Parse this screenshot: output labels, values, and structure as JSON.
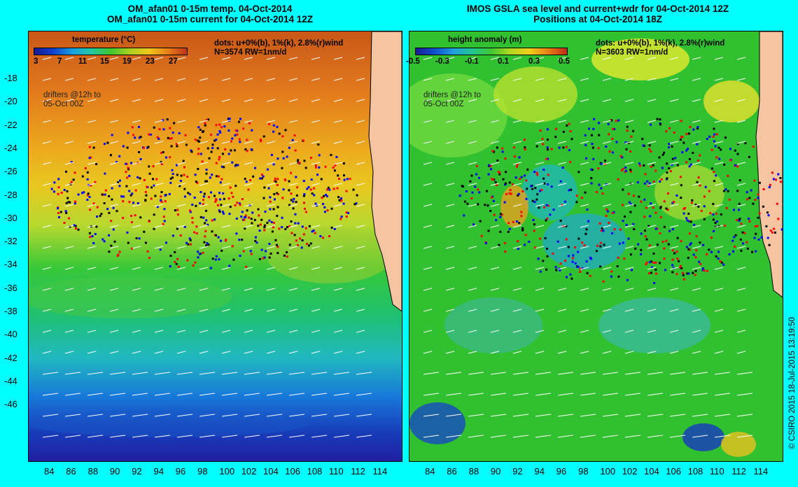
{
  "left": {
    "title1": "OM_afan01 0-15m temp. 04-Oct-2014",
    "title2": "OM_afan01 0-15m current for 04-Oct-2014 12Z",
    "colorbar_title": "temperature (°C)",
    "colorbar_ticks": [
      "3",
      "7",
      "11",
      "15",
      "19",
      "23",
      "27"
    ],
    "dots_note": "dots: u+0%(b), 1%(k), 2.8%(r)wind",
    "count_note": "N=3574 RW=1nm/d",
    "drifters_note_1": "drifters @12h to",
    "drifters_note_2": "05-Oct 00Z",
    "lat_ticks": [
      "-18",
      "-20",
      "-22",
      "-24",
      "-26",
      "-28",
      "-30",
      "-32",
      "-34",
      "-36",
      "-38",
      "-40",
      "-42",
      "-44",
      "-46"
    ],
    "lon_ticks": [
      "84",
      "86",
      "88",
      "90",
      "92",
      "94",
      "96",
      "98",
      "100",
      "102",
      "104",
      "106",
      "108",
      "110",
      "112",
      "114"
    ]
  },
  "right": {
    "title1": "IMOS GSLA sea level and current+wdr for 04-Oct-2014 12Z",
    "title2": "Positions at 04-Oct-2014 18Z",
    "colorbar_title": "height anomaly  (m)",
    "colorbar_ticks": [
      "-0.5",
      "-0.3",
      "-0.1",
      "0.1",
      "0.3",
      "0.5"
    ],
    "dots_note": "dots: u+0%(b), 1%(k), 2.8%(r)wind",
    "count_note": "N=3603 RW=1nm/d",
    "drifters_note_1": "drifters @12h to",
    "drifters_note_2": "05-Oct 00Z",
    "lon_ticks": [
      "84",
      "86",
      "88",
      "90",
      "92",
      "94",
      "96",
      "98",
      "100",
      "102",
      "104",
      "106",
      "108",
      "110",
      "112",
      "114"
    ]
  },
  "credit": "© CSIRO 2015   18-Jul-2015 13:19:50",
  "colors": {
    "background": "#00ffff",
    "temp_warm": "#e07020",
    "temp_mid": "#f0c020",
    "temp_green": "#30c040",
    "temp_cold": "#1030c0",
    "land": "#f5c4a0",
    "ssh_green": "#33cc33",
    "drifter_blue": "#0000ff",
    "drifter_black": "#000000",
    "drifter_red": "#ff0000"
  }
}
